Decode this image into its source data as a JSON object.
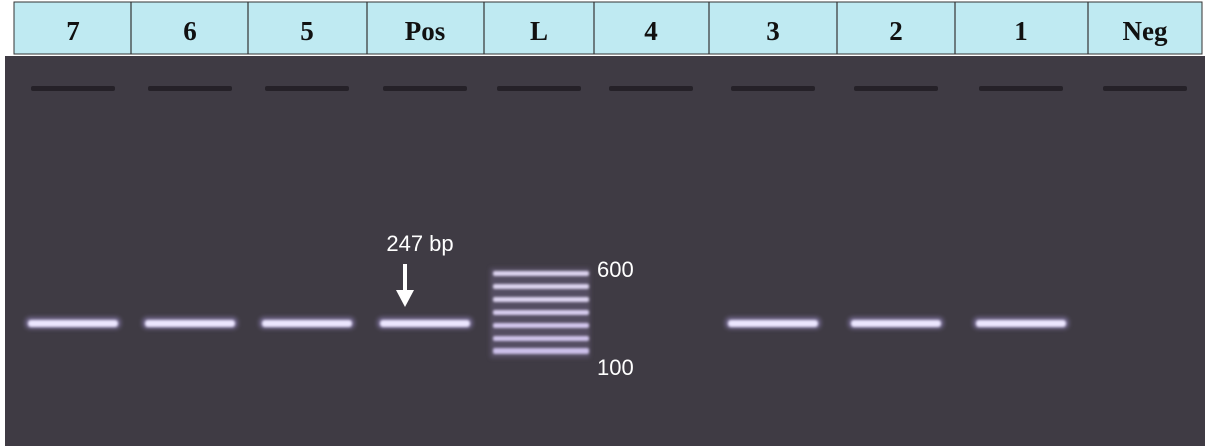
{
  "lanes": [
    "7",
    "6",
    "5",
    "Pos",
    "L",
    "4",
    "3",
    "2",
    "1",
    "Neg"
  ],
  "annotation": "247 bp",
  "ladder_labels": {
    "top": "600",
    "bottom": "100"
  }
}
